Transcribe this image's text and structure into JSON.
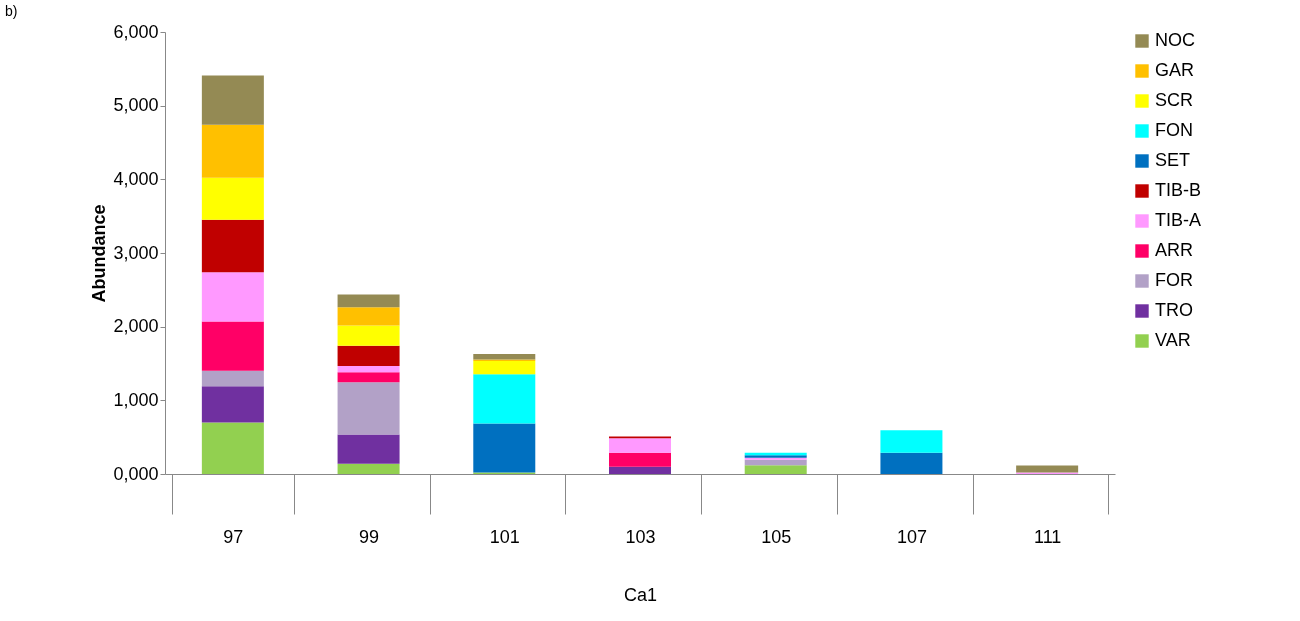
{
  "chart_data": {
    "type": "bar",
    "title": "b)",
    "stacked": true,
    "xlabel": "Ca1",
    "ylabel": "Abundance",
    "categories": [
      "97",
      "99",
      "101",
      "103",
      "105",
      "107",
      "111"
    ],
    "ylim": [
      0,
      6000
    ],
    "yticks": [
      {
        "value": 0,
        "label": "0,000"
      },
      {
        "value": 1000,
        "label": "1,000"
      },
      {
        "value": 2000,
        "label": "2,000"
      },
      {
        "value": 3000,
        "label": "3,000"
      },
      {
        "value": 4000,
        "label": "4,000"
      },
      {
        "value": 5000,
        "label": "5,000"
      },
      {
        "value": 6000,
        "label": "6,000"
      }
    ],
    "legend": "right",
    "grid": false,
    "series": [
      {
        "name": "VAR",
        "color": "#92d050",
        "values": [
          700,
          140,
          20,
          null,
          120,
          null,
          null
        ]
      },
      {
        "name": "TRO",
        "color": "#7030a0",
        "values": [
          490,
          395,
          null,
          100,
          null,
          null,
          null
        ]
      },
      {
        "name": "FOR",
        "color": "#b2a1c7",
        "values": [
          210,
          710,
          null,
          null,
          75,
          null,
          null
        ]
      },
      {
        "name": "ARR",
        "color": "#ff0066",
        "values": [
          670,
          135,
          null,
          190,
          null,
          null,
          null
        ]
      },
      {
        "name": "TIB-A",
        "color": "#ff99ff",
        "values": [
          670,
          85,
          null,
          195,
          25,
          null,
          20
        ]
      },
      {
        "name": "TIB-B",
        "color": "#c00000",
        "values": [
          710,
          275,
          null,
          25,
          null,
          null,
          null
        ]
      },
      {
        "name": "SET",
        "color": "#0070c0",
        "values": [
          null,
          null,
          665,
          null,
          35,
          290,
          null
        ]
      },
      {
        "name": "FON",
        "color": "#00ffff",
        "values": [
          null,
          null,
          670,
          null,
          35,
          305,
          null
        ]
      },
      {
        "name": "SCR",
        "color": "#ffff00",
        "values": [
          570,
          275,
          180,
          null,
          null,
          null,
          null
        ]
      },
      {
        "name": "GAR",
        "color": "#ffc000",
        "values": [
          720,
          250,
          20,
          null,
          null,
          null,
          null
        ]
      },
      {
        "name": "NOC",
        "color": "#948a54",
        "values": [
          670,
          170,
          75,
          null,
          null,
          null,
          95
        ]
      }
    ]
  }
}
